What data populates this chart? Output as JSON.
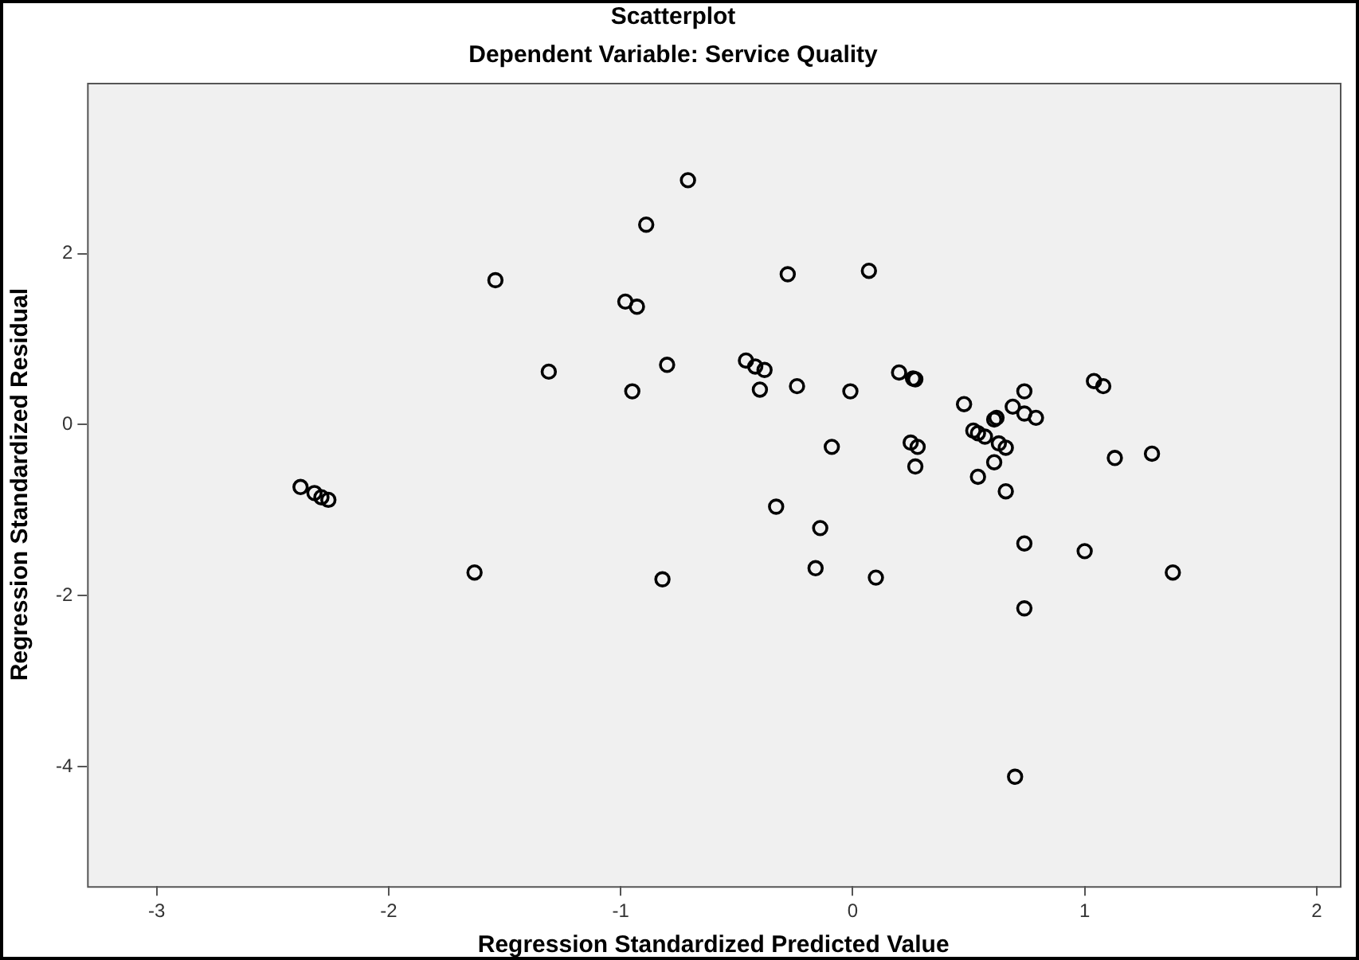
{
  "chart_data": {
    "type": "scatter",
    "title": "Scatterplot",
    "subtitle": "Dependent Variable: Service Quality",
    "xlabel": "Regression Standardized Predicted Value",
    "ylabel": "Regression Standardized Residual",
    "xlim": [
      -3.3,
      2.1
    ],
    "ylim": [
      -5.4,
      4
    ],
    "xticks": [
      -3,
      -2,
      -1,
      0,
      1,
      2
    ],
    "yticks": [
      -4,
      -2,
      0,
      2
    ],
    "grid": false,
    "legend": false,
    "marker": "circle",
    "series": [
      {
        "color": "#000000",
        "x": [
          -0.71,
          -0.89,
          -1.54,
          -0.98,
          -0.93,
          -1.31,
          -0.8,
          -0.95,
          -0.46,
          -0.42,
          -0.38,
          -0.4,
          -0.28,
          -0.33,
          -2.38,
          -2.32,
          -2.29,
          -2.26,
          -1.63,
          -0.82,
          -0.14,
          -0.16,
          0.07,
          -0.24,
          -0.01,
          -0.09,
          0.2,
          0.26,
          0.27,
          0.48,
          0.74,
          0.69,
          0.74,
          0.79,
          0.61,
          0.62,
          0.52,
          0.54,
          0.57,
          0.63,
          0.66,
          0.25,
          0.28,
          0.27,
          0.61,
          0.54,
          0.66,
          1.04,
          1.08,
          1.13,
          1.29,
          0.1,
          0.74,
          1.0,
          1.38,
          0.74,
          0.7
        ],
        "values": [
          2.86,
          2.34,
          1.69,
          1.44,
          1.38,
          0.62,
          0.7,
          0.39,
          0.75,
          0.68,
          0.64,
          0.41,
          1.76,
          -0.96,
          -0.73,
          -0.8,
          -0.85,
          -0.88,
          -1.73,
          -1.81,
          -1.21,
          -1.68,
          1.8,
          0.45,
          0.39,
          -0.26,
          0.61,
          0.54,
          0.53,
          0.24,
          0.39,
          0.21,
          0.13,
          0.08,
          0.06,
          0.08,
          -0.07,
          -0.1,
          -0.14,
          -0.22,
          -0.27,
          -0.21,
          -0.26,
          -0.49,
          -0.44,
          -0.61,
          -0.78,
          0.51,
          0.45,
          -0.39,
          -0.34,
          -1.79,
          -1.39,
          -1.48,
          -1.73,
          -2.15,
          -4.12
        ]
      }
    ]
  }
}
